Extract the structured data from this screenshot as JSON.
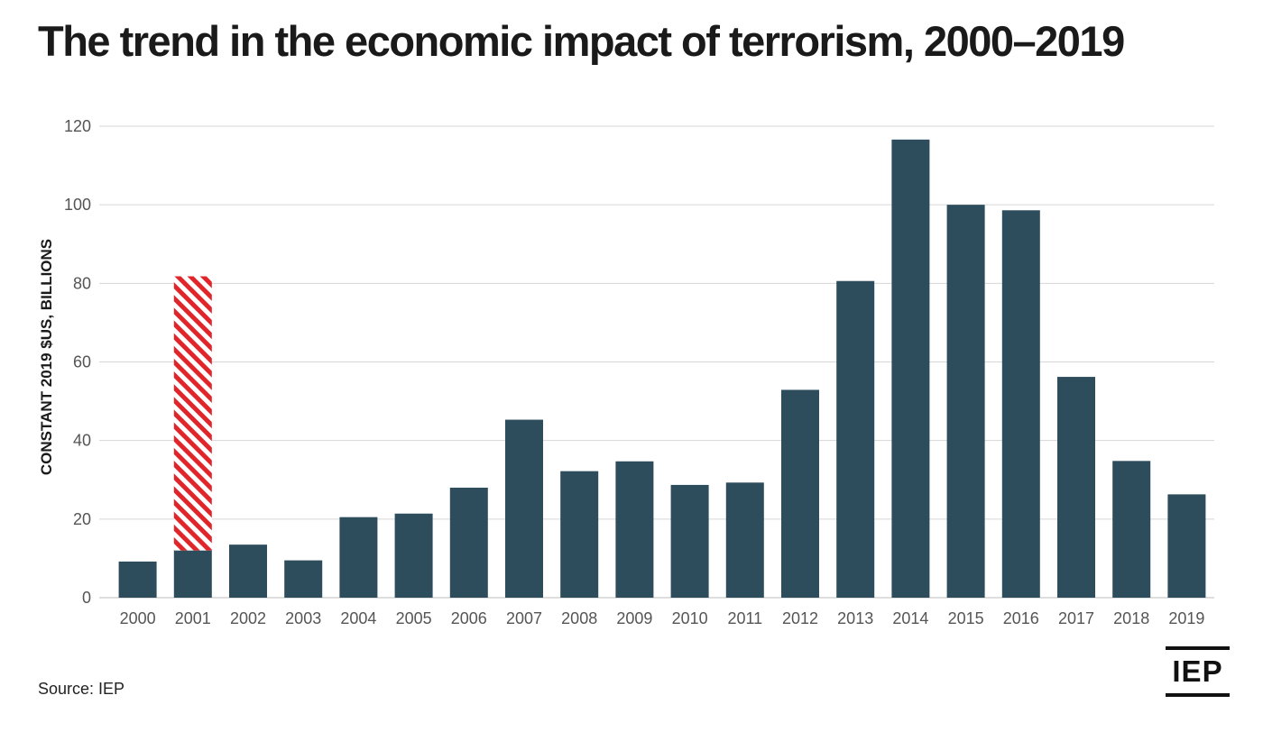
{
  "title": "The trend in the economic impact of terrorism, 2000–2019",
  "source": "Source: IEP",
  "logo_text": "IEP",
  "colors": {
    "bar": "#2d4d5c",
    "highlight": "#e0252b",
    "grid": "#d6d6d6",
    "text": "#1a1a1a"
  },
  "chart_data": {
    "type": "bar",
    "title": "The trend in the economic impact of terrorism, 2000–2019",
    "xlabel": "",
    "ylabel": "CONSTANT 2019 $US, BILLIONS",
    "ylim": [
      0,
      120
    ],
    "yticks": [
      0,
      20,
      40,
      60,
      80,
      100,
      120
    ],
    "grid": true,
    "categories": [
      "2000",
      "2001",
      "2002",
      "2003",
      "2004",
      "2005",
      "2006",
      "2007",
      "2008",
      "2009",
      "2010",
      "2011",
      "2012",
      "2013",
      "2014",
      "2015",
      "2016",
      "2017",
      "2018",
      "2019"
    ],
    "values": [
      9.2,
      81.8,
      13.5,
      9.5,
      20.5,
      21.4,
      28.0,
      45.3,
      32.2,
      34.7,
      28.7,
      29.3,
      52.9,
      80.6,
      116.6,
      100.0,
      98.6,
      56.2,
      34.8,
      26.3
    ],
    "highlight": {
      "category": "2001",
      "base_value": 12.0,
      "pattern": "hatched"
    }
  }
}
